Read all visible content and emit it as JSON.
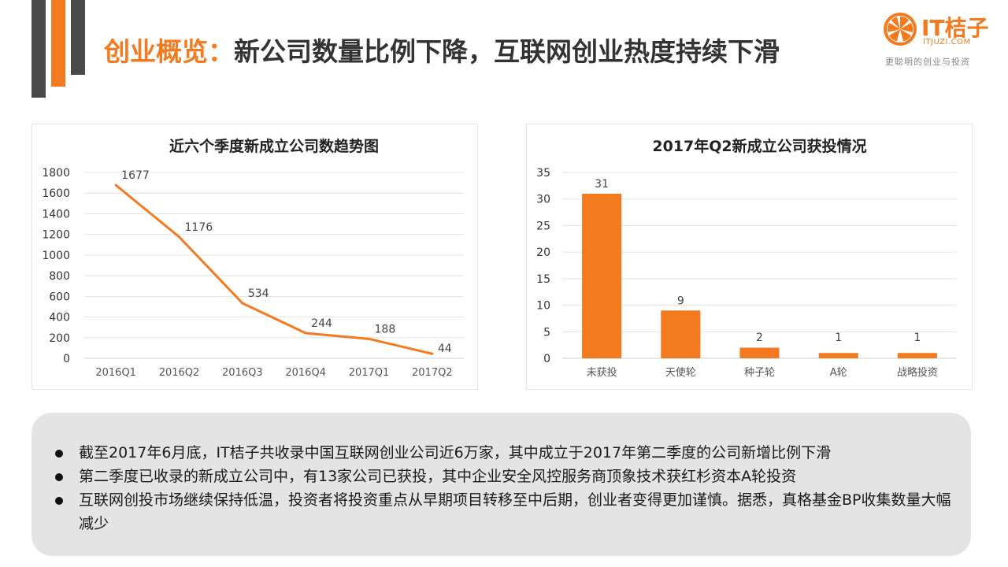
{
  "slide": {
    "title_accent": "创业概览：",
    "title_main": "新公司数量比例下降，互联网创业热度持续下滑"
  },
  "logo": {
    "text": "IT桔子",
    "url": "ITJUZI.COM",
    "tagline": "更聪明的创业与投资"
  },
  "colors": {
    "accent": "#f47a20",
    "dark_gray": "#4a4a4a",
    "summary_bg": "#e4e4e4"
  },
  "chart_data": [
    {
      "type": "line",
      "title": "近六个季度新成立公司数趋势图",
      "categories": [
        "2016Q1",
        "2016Q2",
        "2016Q3",
        "2016Q4",
        "2017Q1",
        "2017Q2"
      ],
      "series": [
        {
          "values": [
            1677,
            1176,
            534,
            244,
            188,
            44
          ]
        }
      ],
      "data_labels": [
        "1677",
        "1176",
        "534",
        "244",
        "188",
        "44"
      ],
      "ylim": [
        0,
        1800
      ],
      "yticks": [
        0,
        200,
        400,
        600,
        800,
        1000,
        1200,
        1400,
        1600,
        1800
      ],
      "grid": true,
      "color": "#f47a20"
    },
    {
      "type": "bar",
      "title": "2017年Q2新成立公司获投情况",
      "categories": [
        "未获投",
        "天使轮",
        "种子轮",
        "A轮",
        "战略投资"
      ],
      "series": [
        {
          "values": [
            31,
            9,
            2,
            1,
            1
          ]
        }
      ],
      "data_labels": [
        "31",
        "9",
        "2",
        "1",
        "1"
      ],
      "ylim": [
        0,
        35
      ],
      "yticks": [
        0,
        5,
        10,
        15,
        20,
        25,
        30,
        35
      ],
      "grid": true,
      "color": "#f47a20"
    }
  ],
  "summary": {
    "bullets": [
      "截至2017年6月底，IT桔子共收录中国互联网创业公司近6万家，其中成立于2017年第二季度的公司新增比例下滑",
      "第二季度已收录的新成立公司中，有13家公司已获投，其中企业安全风控服务商顶象技术获红杉资本A轮投资",
      "互联网创投市场继续保持低温，投资者将投资重点从早期项目转移至中后期，创业者变得更加谨慎。据悉，真格基金BP收集数量大幅减少"
    ]
  }
}
